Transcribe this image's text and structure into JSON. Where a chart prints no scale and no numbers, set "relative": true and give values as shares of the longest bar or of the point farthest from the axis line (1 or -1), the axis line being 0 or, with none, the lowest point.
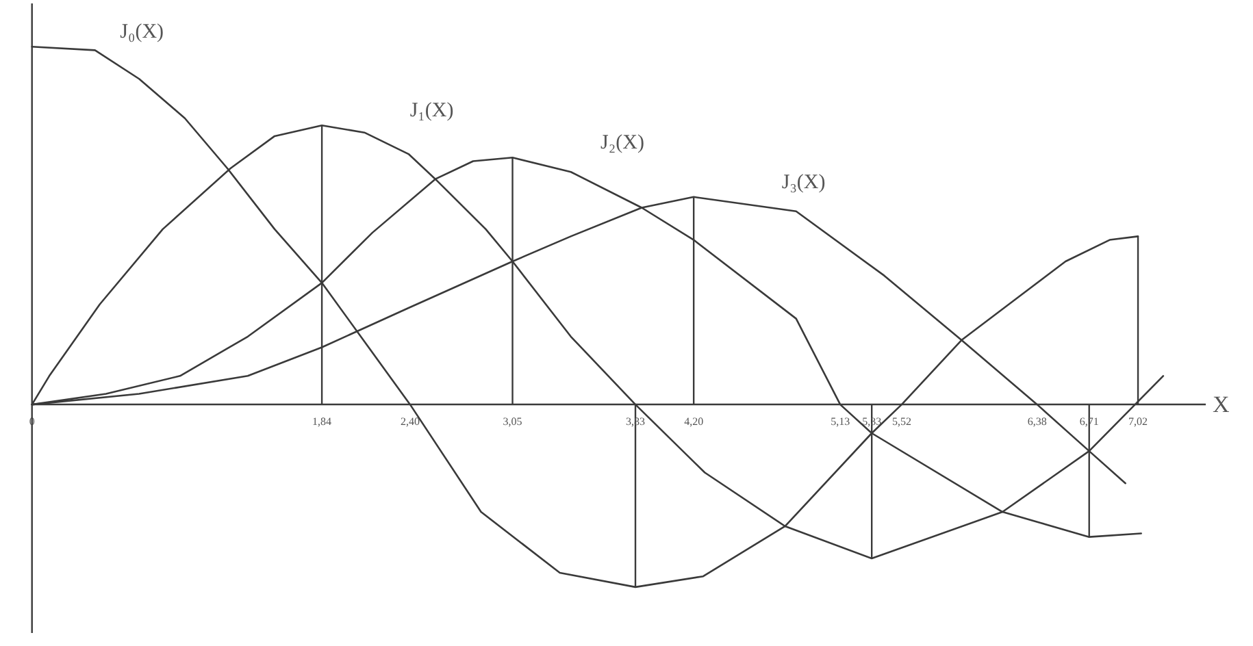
{
  "chart_data": {
    "type": "line",
    "relative": true,
    "xlabel": "X",
    "xlim": [
      0,
      7.45
    ],
    "xticks": [
      0,
      {
        "value": 1.84,
        "label": "1,84"
      },
      {
        "value": 2.4,
        "label": "2,40"
      },
      {
        "value": 3.05,
        "label": "3,05"
      },
      {
        "value": 3.83,
        "label": "3,83"
      },
      {
        "value": 4.2,
        "label": "4,20"
      },
      {
        "value": 5.13,
        "label": "5,13"
      },
      {
        "value": 5.33,
        "label": "5,33"
      },
      {
        "value": 5.52,
        "label": "5,52"
      },
      {
        "value": 6.38,
        "label": "6,38"
      },
      {
        "value": 6.71,
        "label": "6,71"
      },
      {
        "value": 7.02,
        "label": "7,02"
      }
    ],
    "ref_lines": [
      {
        "axis": "x",
        "value": 0
      }
    ],
    "series": [
      {
        "name": "J₀(X)",
        "color": "#3a3a3a",
        "x": [
          0,
          0.4,
          0.68,
          0.97,
          1.24,
          1.54,
          1.84,
          2.4,
          2.85,
          3.35,
          3.83,
          4.26,
          4.78,
          5.33,
          5.52,
          5.9,
          6.26,
          6.56,
          6.84,
          7.02
        ],
        "values": [
          1.0,
          0.99,
          0.91,
          0.8,
          0.66,
          0.49,
          0.34,
          0,
          -0.3,
          -0.47,
          -0.51,
          -0.48,
          -0.34,
          -0.08,
          0,
          0.18,
          0.3,
          0.4,
          0.46,
          0.47
        ]
      },
      {
        "name": "J₁(X)",
        "color": "#3a3a3a",
        "x": [
          0,
          0.11,
          0.43,
          0.83,
          1.26,
          1.54,
          1.84,
          2.11,
          2.39,
          2.56,
          2.88,
          3.05,
          3.42,
          3.83,
          4.27,
          4.78,
          5.33,
          6.16,
          6.71,
          7.18
        ],
        "values": [
          0,
          0.08,
          0.28,
          0.49,
          0.66,
          0.75,
          0.78,
          0.76,
          0.7,
          0.63,
          0.49,
          0.4,
          0.19,
          0,
          -0.19,
          -0.34,
          -0.43,
          -0.3,
          -0.13,
          0.08
        ]
      },
      {
        "name": "J₂(X)",
        "color": "#3a3a3a",
        "x": [
          0,
          0.47,
          0.94,
          1.37,
          1.84,
          2.16,
          2.56,
          2.8,
          3.05,
          3.42,
          3.87,
          4.2,
          4.85,
          5.13,
          5.33,
          6.16,
          6.71,
          7.04
        ],
        "values": [
          0,
          0.03,
          0.08,
          0.19,
          0.34,
          0.48,
          0.63,
          0.68,
          0.69,
          0.65,
          0.55,
          0.46,
          0.24,
          0,
          -0.08,
          -0.3,
          -0.37,
          -0.36
        ]
      },
      {
        "name": "J₃(X)",
        "color": "#3a3a3a",
        "x": [
          0,
          0.68,
          1.37,
          1.84,
          2.39,
          3.05,
          3.42,
          3.87,
          4.2,
          4.85,
          5.41,
          5.9,
          6.38,
          6.71,
          6.94
        ],
        "values": [
          0,
          0.03,
          0.08,
          0.16,
          0.27,
          0.4,
          0.47,
          0.55,
          0.58,
          0.54,
          0.36,
          0.18,
          0,
          -0.13,
          -0.22
        ]
      },
      {
        "type": "bar",
        "color": "#3a3a3a",
        "x": [
          1.84,
          3.05,
          3.83,
          4.2,
          5.33,
          6.71,
          7.02
        ],
        "values": [
          0.78,
          0.69,
          -0.51,
          0.58,
          -0.43,
          -0.37,
          0.47
        ]
      }
    ]
  }
}
